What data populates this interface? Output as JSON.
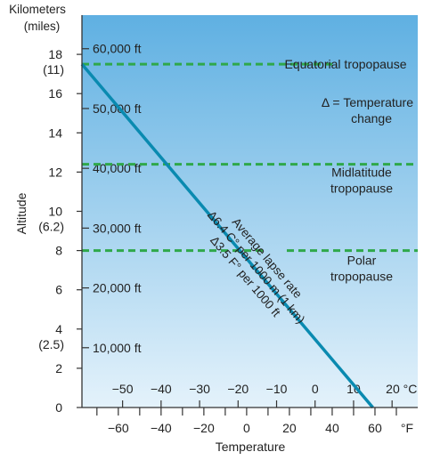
{
  "chart_data": {
    "type": "line",
    "ylabel": "Altitude",
    "xlabel": "Temperature",
    "y_units": {
      "primary": "Kilometers",
      "secondary": "(miles)"
    },
    "y_ticks": [
      {
        "v": 0,
        "label": "0",
        "sub": ""
      },
      {
        "v": 2,
        "label": "2",
        "sub": ""
      },
      {
        "v": 4,
        "label": "4",
        "sub": "(2.5)"
      },
      {
        "v": 6,
        "label": "6",
        "sub": ""
      },
      {
        "v": 8,
        "label": "8",
        "sub": ""
      },
      {
        "v": 10,
        "label": "10",
        "sub": "(6.2)"
      },
      {
        "v": 12,
        "label": "12",
        "sub": ""
      },
      {
        "v": 14,
        "label": "14",
        "sub": ""
      },
      {
        "v": 16,
        "label": "16",
        "sub": ""
      },
      {
        "v": 18,
        "label": "18",
        "sub": "(11)"
      }
    ],
    "ylim": [
      0,
      20
    ],
    "feet_ticks": [
      {
        "km": 3.048,
        "label": "10,000 ft"
      },
      {
        "km": 6.096,
        "label": "20,000 ft"
      },
      {
        "km": 9.144,
        "label": "30,000 ft"
      },
      {
        "km": 12.192,
        "label": "40,000 ft"
      },
      {
        "km": 15.24,
        "label": "50,000 ft"
      },
      {
        "km": 18.288,
        "label": "60,000 ft"
      }
    ],
    "celsius_ticks": [
      {
        "v": -50,
        "label": "−50"
      },
      {
        "v": -40,
        "label": "−40"
      },
      {
        "v": -30,
        "label": "−30"
      },
      {
        "v": -20,
        "label": "−20"
      },
      {
        "v": -10,
        "label": "−10"
      },
      {
        "v": 0,
        "label": "0"
      },
      {
        "v": 10,
        "label": "10"
      },
      {
        "v": 20,
        "label": "20 °C"
      }
    ],
    "fahrenheit_ticks": [
      {
        "v": -60,
        "label": "−60"
      },
      {
        "v": -40,
        "label": "−40"
      },
      {
        "v": -20,
        "label": "−20"
      },
      {
        "v": 0,
        "label": "0"
      },
      {
        "v": 20,
        "label": "20"
      },
      {
        "v": 40,
        "label": "40"
      },
      {
        "v": 60,
        "label": "60"
      },
      {
        "v": 75,
        "label": "°F"
      }
    ],
    "xlim_f": [
      -77,
      80
    ],
    "lapse_line": {
      "points_f": [
        [
          -77,
          17.5
        ],
        [
          59,
          0
        ]
      ],
      "label_lines": [
        "Average lapse rate",
        "Δ6.4 C° per 1000 m (1 km)",
        "Δ3.5 F° per 1000 ft"
      ]
    },
    "tropopauses": [
      {
        "km": 17.5,
        "x_start_f": -77,
        "x_end_f": 42,
        "label_lines": [
          "Equatorial tropopause"
        ]
      },
      {
        "km": 12.4,
        "x_start_f": -77,
        "x_end_f": 80,
        "label_lines": [
          "Midlatitude",
          "tropopause"
        ]
      },
      {
        "km": 8.0,
        "x_start_f": -77,
        "x_end_f": 80,
        "label_lines": [
          "Polar",
          "tropopause"
        ]
      }
    ],
    "annotation": {
      "lines": [
        "Δ = Temperature",
        "change"
      ]
    },
    "colors": {
      "bg_top": "#5fb0e2",
      "bg_bottom": "#e4f2fb",
      "lapse_line": "#0a8ab0",
      "tropopause": "#2fa84a",
      "axis": "#333333"
    }
  }
}
